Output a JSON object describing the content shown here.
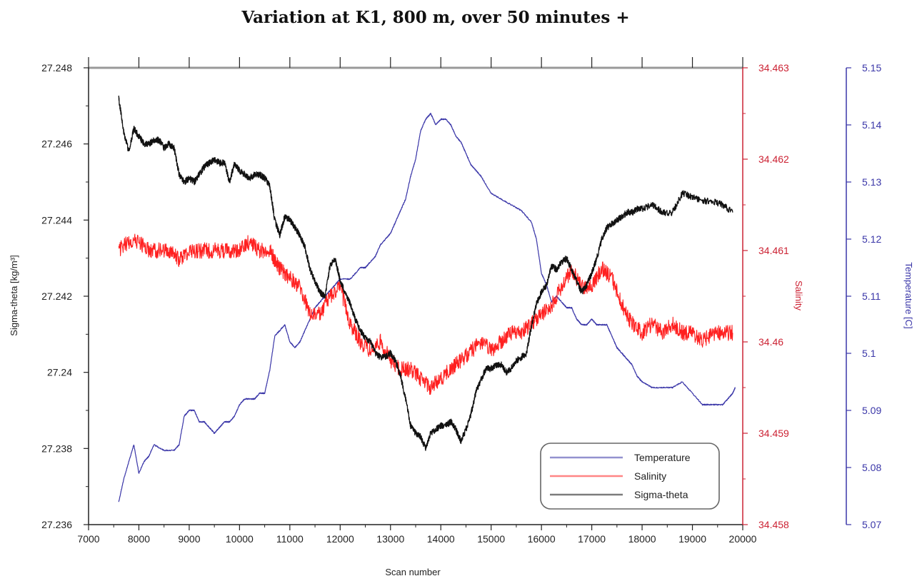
{
  "chart_data": {
    "type": "line",
    "title": "Variation at K1, 800 m, over 50 minutes +",
    "xlabel": "Scan number",
    "xlim": [
      7000,
      20000
    ],
    "x_ticks": [
      "7000",
      "8000",
      "9000",
      "10000",
      "11000",
      "12000",
      "13000",
      "14000",
      "15000",
      "16000",
      "17000",
      "18000",
      "19000",
      "20000"
    ],
    "axes": {
      "left": {
        "label": "Sigma-theta [kg/m³]",
        "ylim": [
          27.236,
          27.248
        ],
        "ticks": [
          "27.236",
          "27.238",
          "27.24",
          "27.242",
          "27.244",
          "27.246",
          "27.248"
        ],
        "color": "#222222"
      },
      "right1": {
        "label": "Salinity",
        "ylim": [
          34.458,
          34.463
        ],
        "ticks": [
          "34.458",
          "34.459",
          "34.46",
          "34.461",
          "34.462",
          "34.463"
        ],
        "color": "#cc2233"
      },
      "right2": {
        "label": "Temperature [C]",
        "ylim": [
          5.07,
          5.15
        ],
        "ticks": [
          "5.07",
          "5.08",
          "5.09",
          "5.1",
          "5.11",
          "5.12",
          "5.13",
          "5.14",
          "5.15"
        ],
        "color": "#3a36a8"
      }
    },
    "legend": {
      "position": "bottom-right",
      "entries": [
        "Temperature",
        "Salinity",
        "Sigma-theta"
      ]
    },
    "series": [
      {
        "name": "Temperature",
        "axis": "right2",
        "color": "#3a36a8",
        "x": [
          7600,
          7700,
          7800,
          7900,
          8000,
          8100,
          8200,
          8300,
          8500,
          8700,
          8800,
          8900,
          9000,
          9100,
          9200,
          9300,
          9400,
          9500,
          9600,
          9700,
          9800,
          9900,
          10000,
          10100,
          10200,
          10300,
          10400,
          10500,
          10600,
          10700,
          10800,
          10900,
          11000,
          11100,
          11200,
          11300,
          11400,
          11500,
          11600,
          11700,
          11800,
          11900,
          12000,
          12200,
          12400,
          12500,
          12600,
          12700,
          12800,
          12900,
          13000,
          13100,
          13200,
          13300,
          13400,
          13500,
          13600,
          13700,
          13800,
          13900,
          14000,
          14100,
          14200,
          14300,
          14400,
          14500,
          14600,
          14700,
          14800,
          15000,
          15200,
          15400,
          15600,
          15800,
          15900,
          16000,
          16100,
          16200,
          16300,
          16400,
          16500,
          16600,
          16700,
          16800,
          16900,
          17000,
          17100,
          17200,
          17300,
          17400,
          17500,
          17600,
          17700,
          17800,
          17900,
          18000,
          18200,
          18400,
          18600,
          18800,
          19000,
          19200,
          19400,
          19600,
          19700,
          19800,
          19850
        ],
        "values": [
          5.074,
          5.078,
          5.081,
          5.084,
          5.079,
          5.081,
          5.082,
          5.084,
          5.083,
          5.083,
          5.084,
          5.089,
          5.09,
          5.09,
          5.088,
          5.088,
          5.087,
          5.086,
          5.087,
          5.088,
          5.088,
          5.089,
          5.091,
          5.092,
          5.092,
          5.092,
          5.093,
          5.093,
          5.097,
          5.103,
          5.104,
          5.105,
          5.102,
          5.101,
          5.102,
          5.104,
          5.106,
          5.108,
          5.109,
          5.11,
          5.111,
          5.112,
          5.113,
          5.113,
          5.115,
          5.115,
          5.116,
          5.117,
          5.119,
          5.12,
          5.121,
          5.123,
          5.125,
          5.127,
          5.131,
          5.134,
          5.139,
          5.141,
          5.142,
          5.14,
          5.141,
          5.141,
          5.14,
          5.138,
          5.137,
          5.135,
          5.133,
          5.132,
          5.131,
          5.128,
          5.127,
          5.126,
          5.125,
          5.123,
          5.12,
          5.114,
          5.112,
          5.109,
          5.11,
          5.109,
          5.108,
          5.108,
          5.106,
          5.105,
          5.105,
          5.106,
          5.105,
          5.105,
          5.105,
          5.103,
          5.101,
          5.1,
          5.099,
          5.098,
          5.096,
          5.095,
          5.094,
          5.094,
          5.094,
          5.095,
          5.093,
          5.091,
          5.091,
          5.091,
          5.092,
          5.093,
          5.094
        ]
      },
      {
        "name": "Salinity",
        "axis": "right1",
        "color": "#ff2020",
        "x": [
          7600,
          7800,
          8000,
          8200,
          8400,
          8600,
          8800,
          9000,
          9200,
          9400,
          9600,
          9800,
          10000,
          10200,
          10400,
          10600,
          10700,
          10800,
          11000,
          11200,
          11400,
          11600,
          11800,
          12000,
          12200,
          12400,
          12600,
          12800,
          13000,
          13200,
          13400,
          13600,
          13800,
          14000,
          14200,
          14400,
          14600,
          14800,
          15000,
          15200,
          15400,
          15600,
          15800,
          16000,
          16200,
          16400,
          16600,
          16800,
          17000,
          17200,
          17400,
          17600,
          17800,
          18000,
          18200,
          18400,
          18600,
          18800,
          19000,
          19200,
          19400,
          19600,
          19800
        ],
        "values": [
          34.461,
          34.4611,
          34.4611,
          34.461,
          34.461,
          34.461,
          34.4609,
          34.461,
          34.461,
          34.461,
          34.461,
          34.461,
          34.461,
          34.4611,
          34.461,
          34.461,
          34.4609,
          34.4608,
          34.4607,
          34.4606,
          34.4603,
          34.4603,
          34.4605,
          34.4606,
          34.4602,
          34.46,
          34.4599,
          34.46,
          34.4598,
          34.4597,
          34.4597,
          34.4596,
          34.4595,
          34.4596,
          34.4597,
          34.4598,
          34.4599,
          34.46,
          34.4599,
          34.46,
          34.4601,
          34.4601,
          34.4602,
          34.4603,
          34.4604,
          34.4606,
          34.4608,
          34.4606,
          34.4606,
          34.4608,
          34.4607,
          34.4604,
          34.4602,
          34.4601,
          34.4602,
          34.4601,
          34.4602,
          34.4601,
          34.4601,
          34.46,
          34.4601,
          34.4601,
          34.4601
        ]
      },
      {
        "name": "Sigma-theta",
        "axis": "left",
        "color": "#111111",
        "x": [
          7600,
          7700,
          7800,
          7900,
          8000,
          8100,
          8200,
          8300,
          8400,
          8500,
          8600,
          8700,
          8800,
          8900,
          9000,
          9100,
          9200,
          9300,
          9400,
          9500,
          9600,
          9700,
          9800,
          9900,
          10000,
          10100,
          10200,
          10300,
          10400,
          10500,
          10600,
          10700,
          10800,
          10900,
          11000,
          11100,
          11200,
          11300,
          11400,
          11500,
          11600,
          11700,
          11800,
          11900,
          12000,
          12100,
          12200,
          12300,
          12400,
          12500,
          12600,
          12700,
          12800,
          12900,
          13000,
          13100,
          13200,
          13300,
          13400,
          13500,
          13600,
          13700,
          13800,
          13900,
          14000,
          14100,
          14200,
          14300,
          14400,
          14500,
          14600,
          14700,
          14800,
          14900,
          15000,
          15100,
          15200,
          15300,
          15400,
          15500,
          15600,
          15700,
          15800,
          15900,
          16000,
          16100,
          16200,
          16300,
          16400,
          16500,
          16600,
          16700,
          16800,
          16900,
          17000,
          17100,
          17200,
          17300,
          17400,
          17500,
          17600,
          17700,
          17800,
          17900,
          18000,
          18200,
          18400,
          18600,
          18800,
          19000,
          19200,
          19400,
          19600,
          19800
        ],
        "values": [
          27.2472,
          27.2463,
          27.2458,
          27.2464,
          27.2462,
          27.246,
          27.246,
          27.2461,
          27.2461,
          27.2459,
          27.246,
          27.2459,
          27.2452,
          27.245,
          27.2451,
          27.245,
          27.2452,
          27.2454,
          27.2455,
          27.2456,
          27.2455,
          27.2455,
          27.245,
          27.2455,
          27.2453,
          27.2452,
          27.2451,
          27.2452,
          27.2452,
          27.2451,
          27.2449,
          27.244,
          27.2436,
          27.2441,
          27.244,
          27.2438,
          27.2436,
          27.2433,
          27.2427,
          27.2424,
          27.2421,
          27.242,
          27.2428,
          27.243,
          27.2424,
          27.2421,
          27.2418,
          27.2414,
          27.2411,
          27.2409,
          27.2408,
          27.2405,
          27.2404,
          27.2404,
          27.2405,
          27.2403,
          27.2399,
          27.2393,
          27.2386,
          27.2384,
          27.2383,
          27.238,
          27.2384,
          27.2385,
          27.2386,
          27.2386,
          27.2387,
          27.2385,
          27.2382,
          27.2385,
          27.2389,
          27.2395,
          27.2398,
          27.2401,
          27.2401,
          27.2402,
          27.2402,
          27.24,
          27.2401,
          27.2403,
          27.2404,
          27.2405,
          27.2412,
          27.2418,
          27.2421,
          27.2423,
          27.2428,
          27.2427,
          27.2429,
          27.243,
          27.2427,
          27.2424,
          27.2421,
          27.2423,
          27.2426,
          27.243,
          27.2435,
          27.2438,
          27.2439,
          27.244,
          27.2441,
          27.2442,
          27.2442,
          27.2443,
          27.2443,
          27.2444,
          27.2442,
          27.2442,
          27.2447,
          27.2446,
          27.2445,
          27.2445,
          27.2444,
          27.2442
        ]
      }
    ]
  }
}
